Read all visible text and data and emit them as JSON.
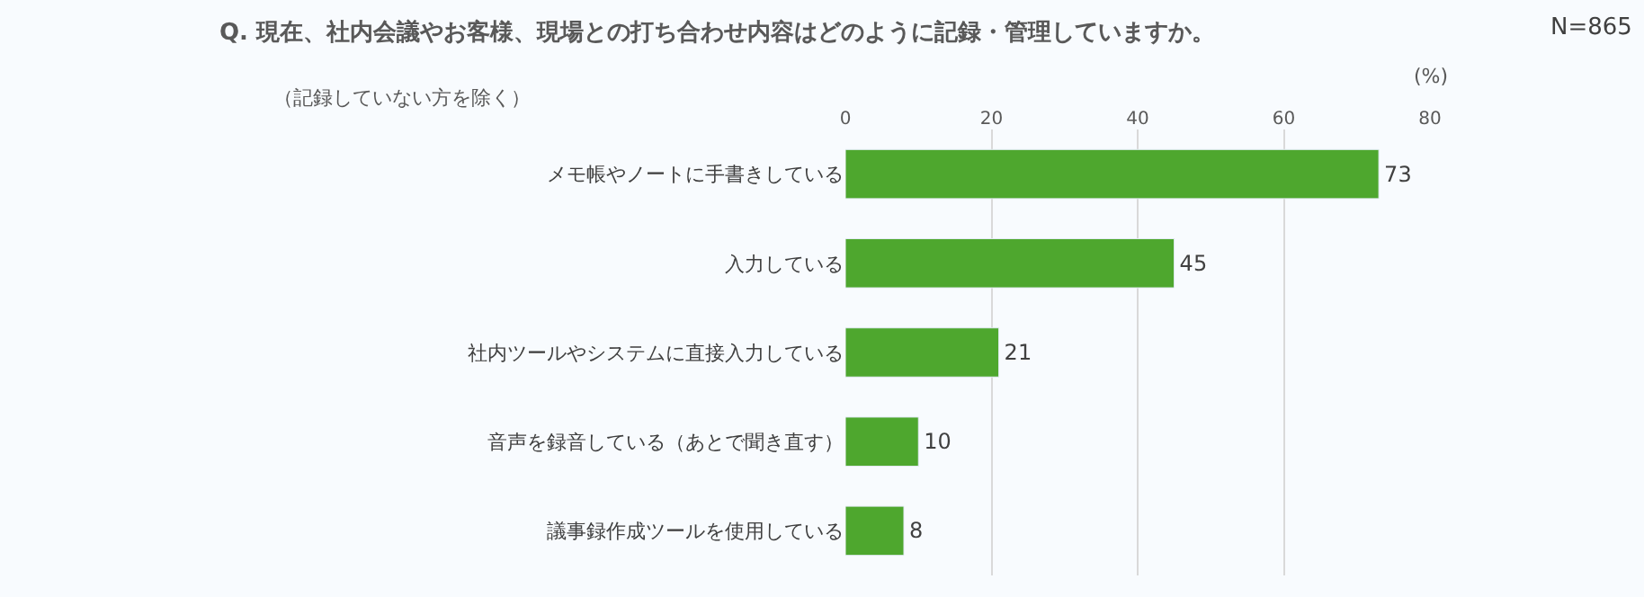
{
  "chart_data": {
    "type": "bar",
    "orientation": "horizontal",
    "title": "Q. 現在、社内会議やお客様、現場との打ち合わせ内容はどのように記録・管理していますか。",
    "subtitle": "（記録していない方を除く）",
    "xlabel": "(%)",
    "annotations": [
      "N=865"
    ],
    "categories": [
      "メモ帳やノートに手書きしている",
      "入力している",
      "社内ツールやシステムに直接入力している",
      "音声を録音している（あとで聞き直す）",
      "議事録作成ツールを使用している"
    ],
    "values": [
      73,
      45,
      21,
      10,
      8
    ],
    "color": "#4ea72e",
    "xlim": [
      0,
      80
    ],
    "xticks": [
      0,
      20,
      40,
      60,
      80
    ],
    "grid": "x",
    "legend": false,
    "data_labels": true
  }
}
